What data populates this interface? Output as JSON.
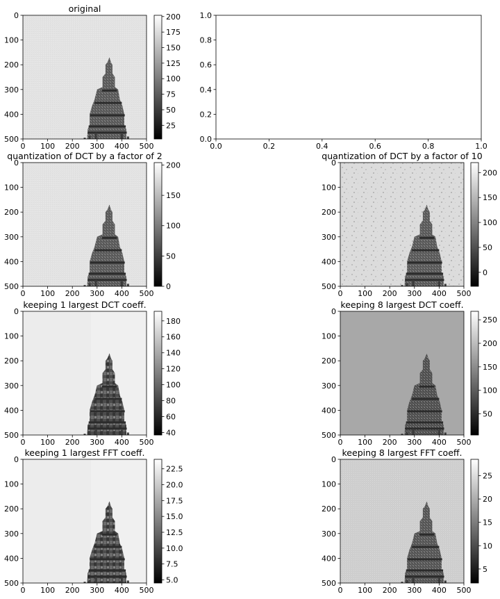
{
  "figure": {
    "panels": [
      {
        "id": "original",
        "title": "original",
        "kind": "image",
        "variant": "photo",
        "colorbar_ticks": [
          25,
          50,
          75,
          100,
          125,
          150,
          175,
          200
        ],
        "colorbar_range": [
          3,
          202
        ]
      },
      {
        "id": "empty",
        "title": "",
        "kind": "empty"
      },
      {
        "id": "dct-q2",
        "title": "quantization of DCT by a factor of 2",
        "kind": "image",
        "variant": "photo",
        "colorbar_ticks": [
          0,
          50,
          100,
          150,
          200
        ],
        "colorbar_range": [
          0,
          204
        ]
      },
      {
        "id": "dct-q10",
        "title": "quantization of DCT by a factor of 10",
        "kind": "image",
        "variant": "quant10",
        "colorbar_ticks": [
          0,
          50,
          100,
          150,
          200
        ],
        "colorbar_range": [
          -28,
          220
        ]
      },
      {
        "id": "dct-k1",
        "title": "keeping 1 largest DCT coeff.",
        "kind": "image",
        "variant": "blocky",
        "colorbar_ticks": [
          40,
          60,
          80,
          100,
          120,
          140,
          160,
          180
        ],
        "colorbar_range": [
          37,
          192
        ]
      },
      {
        "id": "dct-k8",
        "title": "keeping 8 largest DCT coeff.",
        "kind": "image",
        "variant": "gray",
        "colorbar_ticks": [
          50,
          100,
          150,
          200,
          250
        ],
        "colorbar_range": [
          5,
          268
        ]
      },
      {
        "id": "fft-k1",
        "title": "keeping 1 largest FFT coeff.",
        "kind": "image",
        "variant": "blocky",
        "colorbar_ticks": [
          "5.0",
          "7.5",
          "10.0",
          "12.5",
          "15.0",
          "17.5",
          "20.0",
          "22.5"
        ],
        "colorbar_range": [
          4.5,
          24
        ]
      },
      {
        "id": "fft-k8",
        "title": "keeping 8 largest FFT coeff.",
        "kind": "image",
        "variant": "light",
        "colorbar_ticks": [
          5,
          10,
          15,
          20,
          25
        ],
        "colorbar_range": [
          2,
          28.5
        ]
      }
    ]
  },
  "chart_data": [
    {
      "type": "heatmap",
      "title": "original",
      "xlim": [
        0,
        500
      ],
      "ylim": [
        500,
        0
      ],
      "xticks": [
        0,
        100,
        200,
        300,
        400,
        500
      ],
      "yticks": [
        0,
        100,
        200,
        300,
        400,
        500
      ],
      "colorbar": {
        "colormap": "gray",
        "range": [
          3,
          202
        ],
        "ticks": [
          25,
          50,
          75,
          100,
          125,
          150,
          175,
          200
        ]
      }
    },
    {
      "type": "line",
      "title": "",
      "xlim": [
        0.0,
        1.0
      ],
      "ylim": [
        0.0,
        1.0
      ],
      "xticks": [
        "0.0",
        "0.2",
        "0.4",
        "0.6",
        "0.8",
        "1.0"
      ],
      "yticks": [
        "0.0",
        "0.2",
        "0.4",
        "0.6",
        "0.8",
        "1.0"
      ],
      "series": []
    },
    {
      "type": "heatmap",
      "title": "quantization of DCT by a factor of 2",
      "xlim": [
        0,
        500
      ],
      "ylim": [
        500,
        0
      ],
      "xticks": [
        0,
        100,
        200,
        300,
        400,
        500
      ],
      "yticks": [
        0,
        100,
        200,
        300,
        400,
        500
      ],
      "colorbar": {
        "colormap": "gray",
        "range": [
          0,
          204
        ],
        "ticks": [
          0,
          50,
          100,
          150,
          200
        ]
      }
    },
    {
      "type": "heatmap",
      "title": "quantization of DCT by a factor of 10",
      "xlim": [
        0,
        500
      ],
      "ylim": [
        500,
        0
      ],
      "xticks": [
        0,
        100,
        200,
        300,
        400,
        500
      ],
      "yticks": [
        0,
        100,
        200,
        300,
        400,
        500
      ],
      "colorbar": {
        "colormap": "gray",
        "range": [
          -28,
          220
        ],
        "ticks": [
          0,
          50,
          100,
          150,
          200
        ]
      }
    },
    {
      "type": "heatmap",
      "title": "keeping 1 largest DCT coeff.",
      "xlim": [
        0,
        500
      ],
      "ylim": [
        500,
        0
      ],
      "xticks": [
        0,
        100,
        200,
        300,
        400,
        500
      ],
      "yticks": [
        0,
        100,
        200,
        300,
        400,
        500
      ],
      "colorbar": {
        "colormap": "gray",
        "range": [
          37,
          192
        ],
        "ticks": [
          40,
          60,
          80,
          100,
          120,
          140,
          160,
          180
        ]
      }
    },
    {
      "type": "heatmap",
      "title": "keeping 8 largest DCT coeff.",
      "xlim": [
        0,
        500
      ],
      "ylim": [
        500,
        0
      ],
      "xticks": [
        0,
        100,
        200,
        300,
        400,
        500
      ],
      "yticks": [
        0,
        100,
        200,
        300,
        400,
        500
      ],
      "colorbar": {
        "colormap": "gray",
        "range": [
          5,
          268
        ],
        "ticks": [
          50,
          100,
          150,
          200,
          250
        ]
      }
    },
    {
      "type": "heatmap",
      "title": "keeping 1 largest FFT coeff.",
      "xlim": [
        0,
        500
      ],
      "ylim": [
        500,
        0
      ],
      "xticks": [
        0,
        100,
        200,
        300,
        400,
        500
      ],
      "yticks": [
        0,
        100,
        200,
        300,
        400,
        500
      ],
      "colorbar": {
        "colormap": "gray",
        "range": [
          4.5,
          24
        ],
        "ticks": [
          "5.0",
          "7.5",
          "10.0",
          "12.5",
          "15.0",
          "17.5",
          "20.0",
          "22.5"
        ]
      }
    },
    {
      "type": "heatmap",
      "title": "keeping 8 largest FFT coeff.",
      "xlim": [
        0,
        500
      ],
      "ylim": [
        500,
        0
      ],
      "xticks": [
        0,
        100,
        200,
        300,
        400,
        500
      ],
      "yticks": [
        0,
        100,
        200,
        300,
        400,
        500
      ],
      "colorbar": {
        "colormap": "gray",
        "range": [
          2,
          28.5
        ],
        "ticks": [
          5,
          10,
          15,
          20,
          25
        ]
      }
    }
  ]
}
